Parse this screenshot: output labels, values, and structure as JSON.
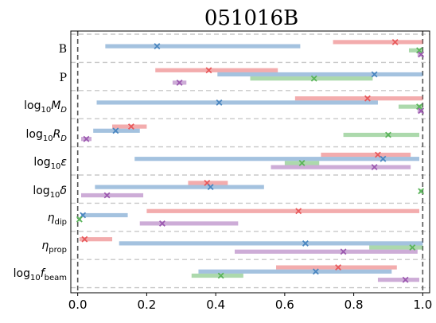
{
  "chart_data": {
    "type": "interval",
    "title": "051016B",
    "xlim": [
      -0.02,
      1.02
    ],
    "xticks": [
      "0.0",
      "0.2",
      "0.4",
      "0.6",
      "0.8",
      "1.0"
    ],
    "xtick_values": [
      0.0,
      0.2,
      0.4,
      0.6,
      0.8,
      1.0
    ],
    "vertical_lines": [
      0.0,
      1.0
    ],
    "grid": "horizontal dashed separators",
    "colors": {
      "red": "#e8595b",
      "blue": "#4a86c0",
      "green": "#5ab45a",
      "purple": "#9c59b0",
      "separator": "#c8c8c8",
      "vline": "#555555"
    },
    "parameters": [
      {
        "label": "B",
        "intervals": [
          {
            "color": "red",
            "low": 0.74,
            "high": 1.0,
            "best": 0.92
          },
          {
            "color": "blue",
            "low": 0.08,
            "high": 0.645,
            "best": 0.23
          },
          {
            "color": "green",
            "low": 0.96,
            "high": 1.0,
            "best": 0.99
          },
          {
            "color": "purple",
            "low": 0.985,
            "high": 1.0,
            "best": 0.995
          }
        ]
      },
      {
        "label": "P",
        "intervals": [
          {
            "color": "red",
            "low": 0.225,
            "high": 0.58,
            "best": 0.38
          },
          {
            "color": "blue",
            "low": 0.405,
            "high": 1.0,
            "best": 0.86
          },
          {
            "color": "green",
            "low": 0.5,
            "high": 0.855,
            "best": 0.685
          },
          {
            "color": "purple",
            "low": 0.275,
            "high": 0.315,
            "best": 0.295
          }
        ]
      },
      {
        "label": "log10 M_D",
        "intervals": [
          {
            "color": "red",
            "low": 0.63,
            "high": 1.0,
            "best": 0.84
          },
          {
            "color": "blue",
            "low": 0.055,
            "high": 0.87,
            "best": 0.41
          },
          {
            "color": "green",
            "low": 0.93,
            "high": 1.0,
            "best": 0.99
          },
          {
            "color": "purple",
            "low": 0.985,
            "high": 1.0,
            "best": 0.995
          }
        ]
      },
      {
        "label": "log10 R_D",
        "intervals": [
          {
            "color": "red",
            "low": 0.1,
            "high": 0.2,
            "best": 0.155
          },
          {
            "color": "blue",
            "low": 0.045,
            "high": 0.18,
            "best": 0.11
          },
          {
            "color": "green",
            "low": 0.77,
            "high": 0.99,
            "best": 0.9
          },
          {
            "color": "purple",
            "low": 0.01,
            "high": 0.04,
            "best": 0.025
          }
        ]
      },
      {
        "label": "log10 ε",
        "intervals": [
          {
            "color": "red",
            "low": 0.705,
            "high": 0.965,
            "best": 0.87
          },
          {
            "color": "blue",
            "low": 0.165,
            "high": 0.99,
            "best": 0.885
          },
          {
            "color": "green",
            "low": 0.6,
            "high": 0.7,
            "best": 0.65
          },
          {
            "color": "purple",
            "low": 0.56,
            "high": 0.965,
            "best": 0.86
          }
        ]
      },
      {
        "label": "log10 δ",
        "intervals": [
          {
            "color": "red",
            "low": 0.32,
            "high": 0.435,
            "best": 0.375
          },
          {
            "color": "blue",
            "low": 0.05,
            "high": 0.54,
            "best": 0.385
          },
          {
            "color": "green",
            "low": 0.99,
            "high": 1.0,
            "best": 0.995
          },
          {
            "color": "purple",
            "low": 0.01,
            "high": 0.19,
            "best": 0.085
          }
        ]
      },
      {
        "label": "η_dip",
        "intervals": [
          {
            "color": "red",
            "low": 0.2,
            "high": 0.99,
            "best": 0.64
          },
          {
            "color": "blue",
            "low": 0.01,
            "high": 0.145,
            "best": 0.015
          },
          {
            "color": "green",
            "low": 0.0,
            "high": 0.01,
            "best": 0.005
          },
          {
            "color": "purple",
            "low": 0.18,
            "high": 0.465,
            "best": 0.245
          }
        ]
      },
      {
        "label": "η_prop",
        "intervals": [
          {
            "color": "red",
            "low": 0.005,
            "high": 0.1,
            "best": 0.02
          },
          {
            "color": "blue",
            "low": 0.12,
            "high": 1.0,
            "best": 0.66
          },
          {
            "color": "green",
            "low": 0.845,
            "high": 1.0,
            "best": 0.97
          },
          {
            "color": "purple",
            "low": 0.455,
            "high": 0.985,
            "best": 0.77
          }
        ]
      },
      {
        "label": "log10 f_beam",
        "intervals": [
          {
            "color": "red",
            "low": 0.575,
            "high": 0.925,
            "best": 0.755
          },
          {
            "color": "blue",
            "low": 0.35,
            "high": 0.91,
            "best": 0.69
          },
          {
            "color": "green",
            "low": 0.33,
            "high": 0.48,
            "best": 0.415
          },
          {
            "color": "purple",
            "low": 0.87,
            "high": 0.99,
            "best": 0.95
          }
        ]
      }
    ]
  }
}
